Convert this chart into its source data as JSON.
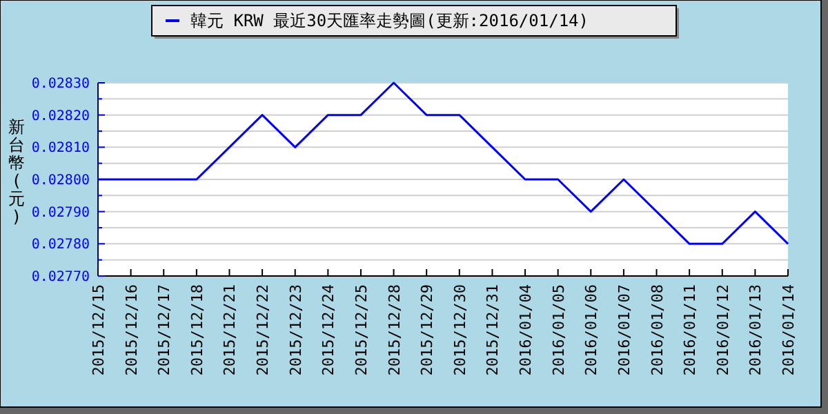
{
  "chart_data": {
    "type": "line",
    "ylabel": "新台幣(元)",
    "categories": [
      "2015/12/15",
      "2015/12/16",
      "2015/12/17",
      "2015/12/18",
      "2015/12/21",
      "2015/12/22",
      "2015/12/23",
      "2015/12/24",
      "2015/12/25",
      "2015/12/28",
      "2015/12/29",
      "2015/12/30",
      "2015/12/31",
      "2016/01/04",
      "2016/01/05",
      "2016/01/06",
      "2016/01/07",
      "2016/01/08",
      "2016/01/11",
      "2016/01/12",
      "2016/01/13",
      "2016/01/14"
    ],
    "series": [
      {
        "name": "韓元 KRW 最近30天匯率走勢圖(更新:2016/01/14)",
        "color": "#0000ff",
        "values": [
          0.028,
          0.028,
          0.028,
          0.028,
          0.0281,
          0.0282,
          0.0281,
          0.0282,
          0.0282,
          0.0283,
          0.0282,
          0.0282,
          0.0281,
          0.028,
          0.028,
          0.0279,
          0.028,
          0.0279,
          0.0278,
          0.0278,
          0.0279,
          0.0278
        ]
      }
    ],
    "ylim": [
      0.0277,
      0.0283
    ],
    "yticks": [
      {
        "value": 0.0277,
        "label": "0.02770"
      },
      {
        "value": 0.02775,
        "label": null
      },
      {
        "value": 0.0278,
        "label": "0.02780"
      },
      {
        "value": 0.02785,
        "label": null
      },
      {
        "value": 0.0279,
        "label": "0.02790"
      },
      {
        "value": 0.02795,
        "label": null
      },
      {
        "value": 0.028,
        "label": "0.02800"
      },
      {
        "value": 0.02805,
        "label": null
      },
      {
        "value": 0.0281,
        "label": "0.02810"
      },
      {
        "value": 0.02815,
        "label": null
      },
      {
        "value": 0.0282,
        "label": "0.02820"
      },
      {
        "value": 0.02825,
        "label": null
      },
      {
        "value": 0.0283,
        "label": "0.02830"
      }
    ],
    "grid": "y",
    "legend": "top",
    "marker": "none",
    "line_style": "solid"
  }
}
